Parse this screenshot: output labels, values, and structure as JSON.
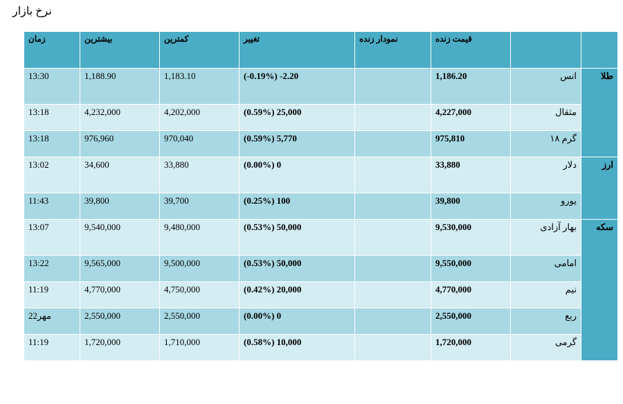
{
  "page": {
    "title": "نرخ بازار"
  },
  "headers": {
    "name": "",
    "price": "قیمت زنده",
    "chart": "نمودار زنده",
    "change": "تغییر",
    "low": "کمترین",
    "high": "بیشترین",
    "time": "زمان"
  },
  "groups": [
    {
      "label": "طلا",
      "rows": [
        {
          "name": "انس",
          "price": "1,186.20",
          "change": "(-0.19%) -2.20",
          "low": "1,183.10",
          "high": "1,188.90",
          "time": "13:30",
          "tall": true
        },
        {
          "name": "مثقال",
          "price": "4,227,000",
          "change": "(0.59%) 25,000",
          "low": "4,202,000",
          "high": "4,232,000",
          "time": "13:18",
          "tall": false
        },
        {
          "name": "گرم ۱۸",
          "price": "975,810",
          "change": "(0.59%) 5,770",
          "low": "970,040",
          "high": "976,960",
          "time": "13:18",
          "tall": false
        }
      ]
    },
    {
      "label": "ارز",
      "rows": [
        {
          "name": "دلار",
          "price": "33,880",
          "change": "(0.00%) 0",
          "low": "33,880",
          "high": "34,600",
          "time": "13:02",
          "tall": true
        },
        {
          "name": "یورو",
          "price": "39,800",
          "change": "(0.25%) 100",
          "low": "39,700",
          "high": "39,800",
          "time": "11:43",
          "tall": false
        }
      ]
    },
    {
      "label": "سکه",
      "rows": [
        {
          "name": "بهار آزادی",
          "price": "9,530,000",
          "change": "(0.53%) 50,000",
          "low": "9,480,000",
          "high": "9,540,000",
          "time": "13:07",
          "tall": true
        },
        {
          "name": "امامی",
          "price": "9,550,000",
          "change": "(0.53%) 50,000",
          "low": "9,500,000",
          "high": "9,565,000",
          "time": "13:22",
          "tall": false
        },
        {
          "name": "نیم",
          "price": "4,770,000",
          "change": "(0.42%) 20,000",
          "low": "4,750,000",
          "high": "4,770,000",
          "time": "11:19",
          "tall": false
        },
        {
          "name": "ربع",
          "price": "2,550,000",
          "change": "(0.00%) 0",
          "low": "2,550,000",
          "high": "2,550,000",
          "time": "22مهر",
          "tall": false
        },
        {
          "name": "گرمی",
          "price": "1,720,000",
          "change": "(0.58%) 10,000",
          "low": "1,710,000",
          "high": "1,720,000",
          "time": "11:19",
          "tall": false
        }
      ]
    }
  ]
}
